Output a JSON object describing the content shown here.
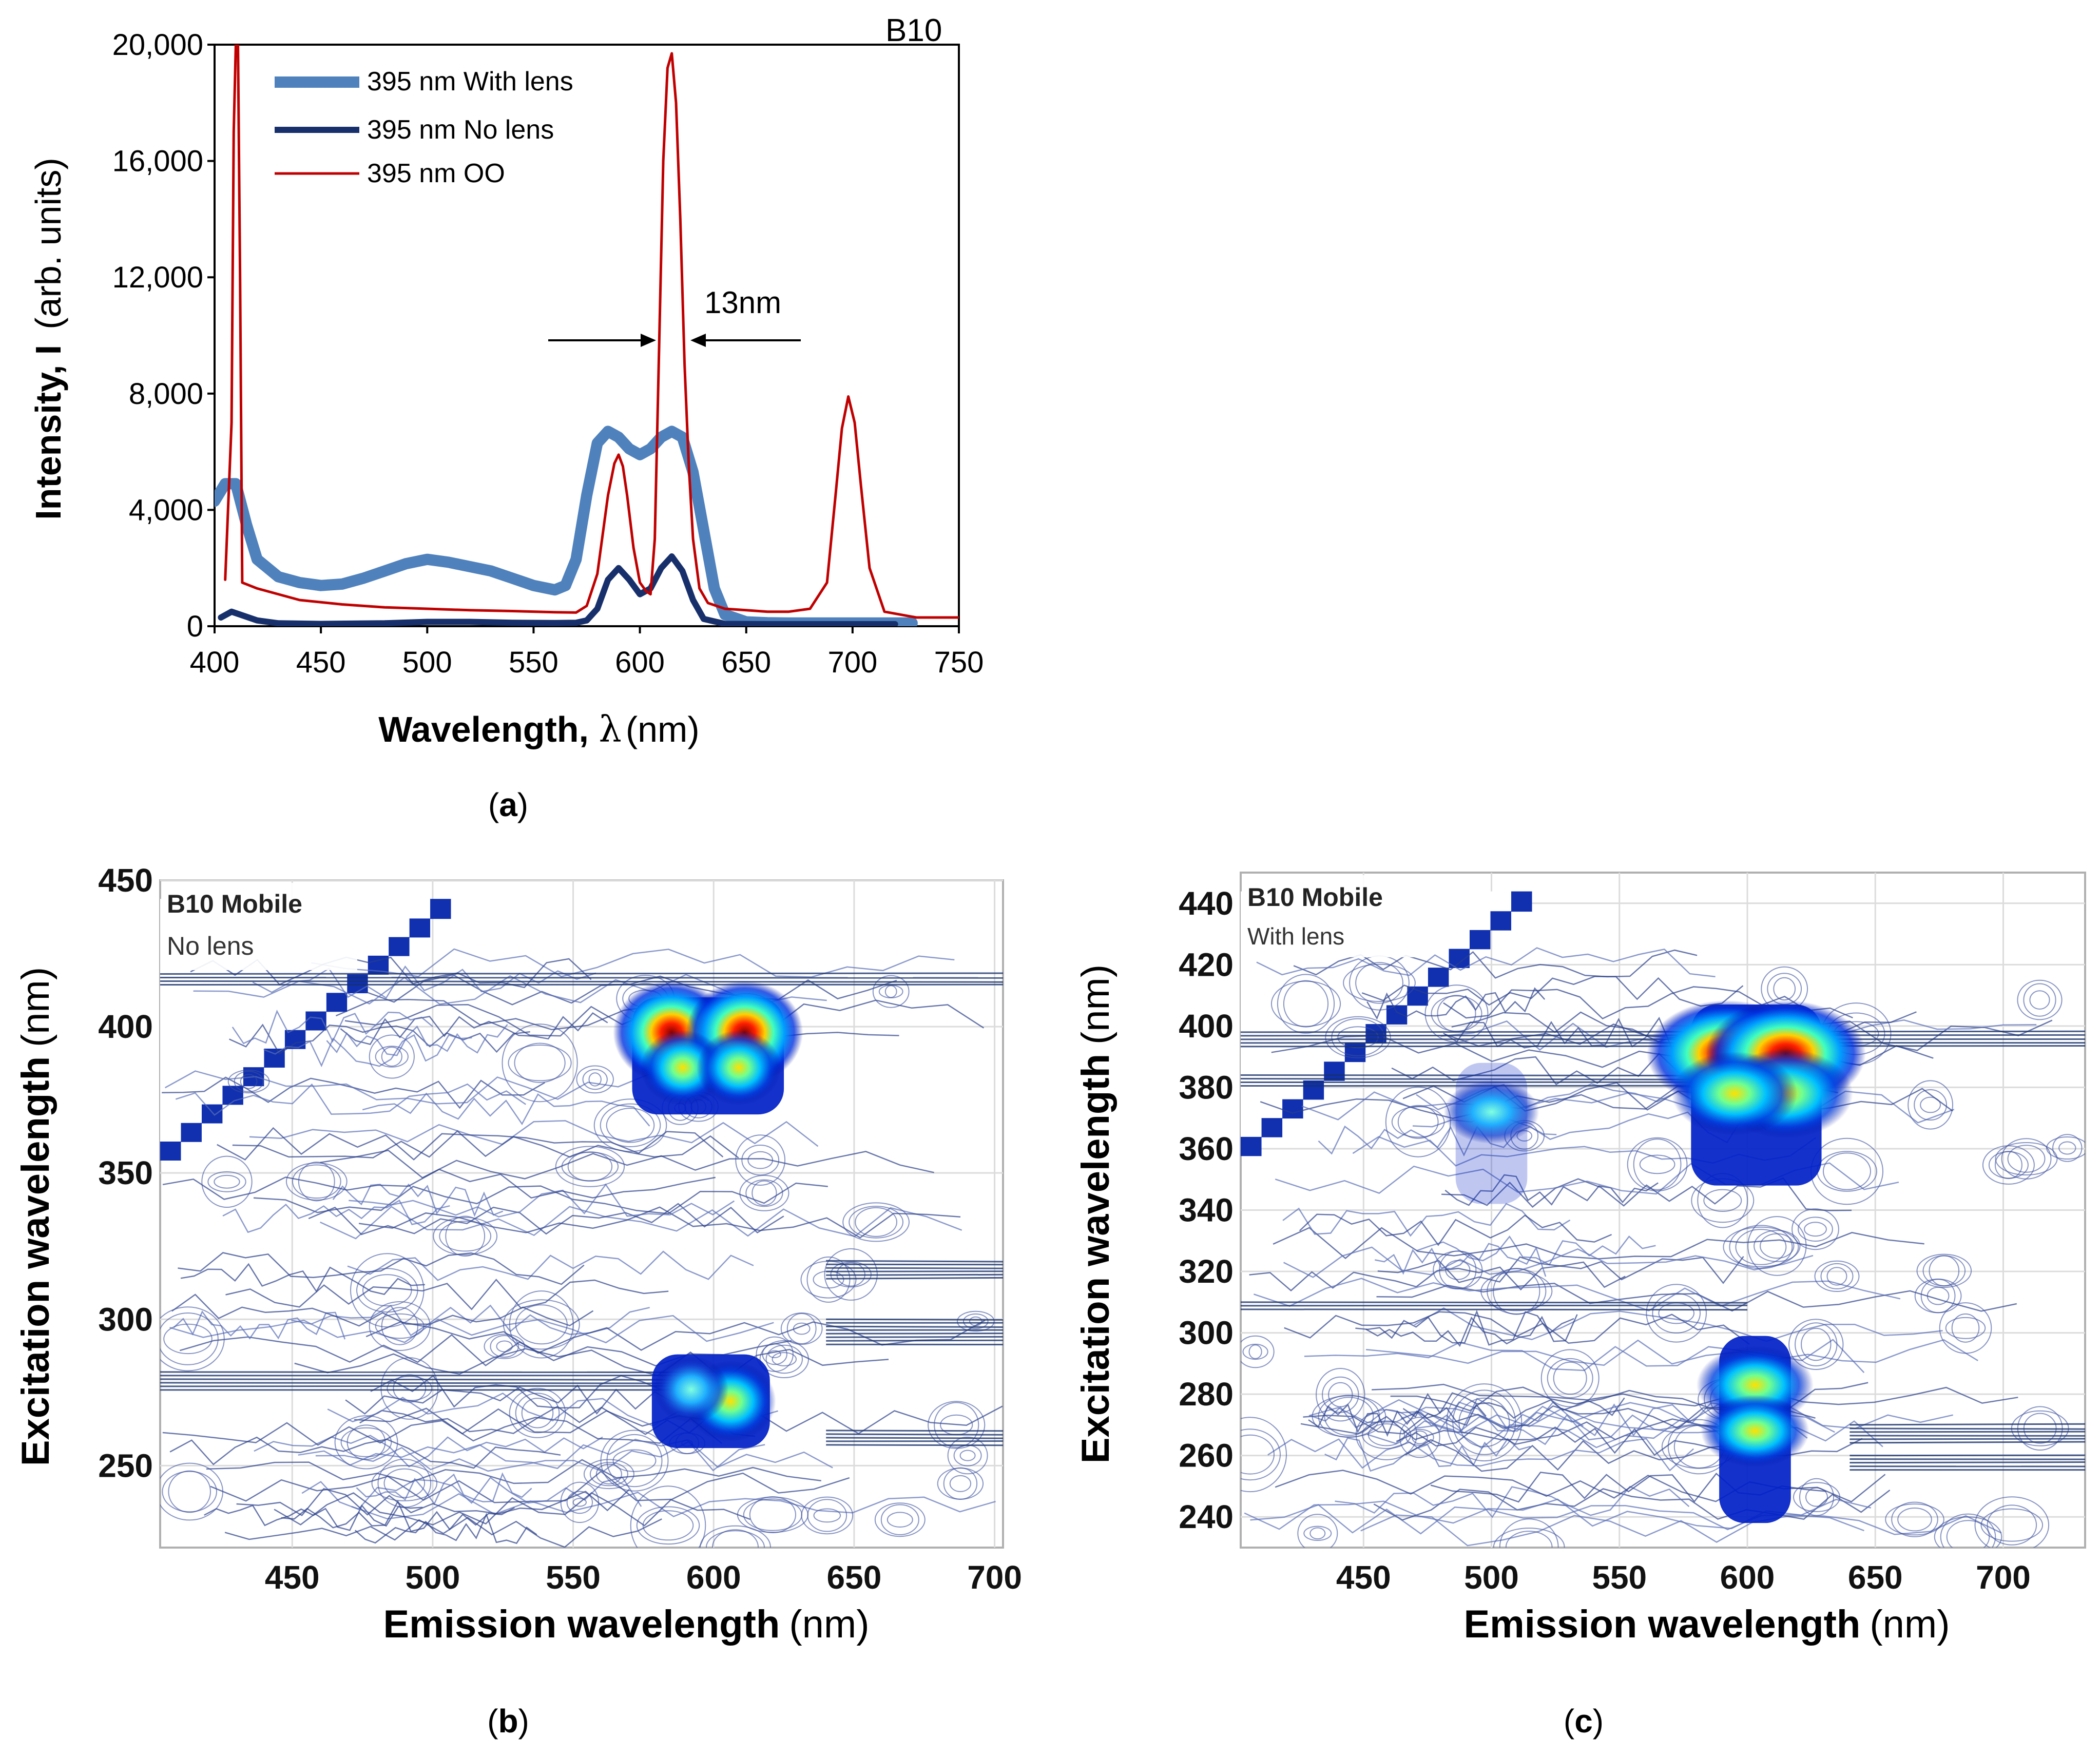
{
  "chart_data": [
    {
      "type": "line",
      "panel_label": "(a)",
      "panel_letter": "a",
      "title": "B10",
      "xlabel": {
        "bold": "Wavelength,",
        "symbol": "λ",
        "unit": "(nm)"
      },
      "ylabel": {
        "bold": "Intensity, I",
        "unit": "(arb. units)"
      },
      "xlim": [
        400,
        750
      ],
      "ylim": [
        0,
        20000
      ],
      "xticks": [
        400,
        450,
        500,
        550,
        600,
        650,
        700,
        750
      ],
      "yticks": [
        0,
        4000,
        8000,
        12000,
        16000,
        20000
      ],
      "ytick_labels": [
        "0",
        "4,000",
        "8,000",
        "12,000",
        "16,000",
        "20,000"
      ],
      "series": [
        {
          "name": "395 nm With lens",
          "color": "#4f81bd",
          "x": [
            400,
            405,
            410,
            415,
            420,
            430,
            440,
            450,
            460,
            470,
            480,
            490,
            500,
            510,
            520,
            530,
            540,
            550,
            560,
            565,
            570,
            575,
            580,
            585,
            590,
            595,
            600,
            605,
            610,
            615,
            620,
            625,
            630,
            635,
            640,
            650,
            660,
            670,
            680,
            690,
            700,
            710,
            720,
            728
          ],
          "y": [
            4300,
            4900,
            4900,
            3500,
            2300,
            1700,
            1500,
            1400,
            1450,
            1650,
            1900,
            2150,
            2300,
            2200,
            2050,
            1900,
            1650,
            1400,
            1250,
            1400,
            2300,
            4500,
            6300,
            6700,
            6500,
            6100,
            5900,
            6100,
            6500,
            6700,
            6500,
            5300,
            3300,
            1300,
            400,
            150,
            120,
            110,
            110,
            110,
            110,
            110,
            110,
            110
          ]
        },
        {
          "name": "395 nm No lens",
          "color": "#17306b",
          "x": [
            403,
            408,
            412,
            420,
            430,
            450,
            480,
            500,
            520,
            540,
            560,
            570,
            575,
            580,
            585,
            590,
            595,
            600,
            605,
            610,
            615,
            620,
            625,
            630,
            640,
            660,
            690,
            720
          ],
          "y": [
            300,
            500,
            400,
            200,
            100,
            80,
            100,
            150,
            150,
            120,
            110,
            120,
            200,
            600,
            1600,
            2000,
            1600,
            1100,
            1300,
            2000,
            2400,
            1900,
            900,
            250,
            80,
            70,
            70,
            70
          ]
        },
        {
          "name": "395 nm OO",
          "color": "#c00000",
          "x": [
            405,
            408,
            409,
            410,
            411,
            412,
            413,
            420,
            440,
            460,
            480,
            500,
            520,
            540,
            560,
            570,
            575,
            580,
            585,
            588,
            590,
            592,
            594,
            597,
            600,
            603,
            605,
            607,
            609,
            611,
            613,
            615,
            617,
            619,
            621,
            623,
            625,
            628,
            632,
            640,
            650,
            660,
            670,
            680,
            688,
            692,
            695,
            698,
            701,
            704,
            708,
            715,
            730,
            750
          ],
          "y": [
            1600,
            7000,
            17000,
            20000,
            20000,
            12000,
            1500,
            1300,
            900,
            750,
            650,
            600,
            550,
            520,
            480,
            470,
            700,
            1800,
            4500,
            5600,
            5900,
            5500,
            4500,
            2700,
            1500,
            1200,
            1100,
            3000,
            9500,
            16000,
            19200,
            19700,
            18000,
            14000,
            9000,
            5500,
            3000,
            1300,
            800,
            600,
            550,
            500,
            500,
            600,
            1500,
            4500,
            6800,
            7900,
            7000,
            4800,
            2000,
            500,
            300,
            300
          ]
        }
      ],
      "annotations": [
        {
          "text": "13nm"
        }
      ]
    },
    {
      "type": "heatmap",
      "panel_label": "(b)",
      "panel_letter": "b",
      "inset_title": "B10 Mobile",
      "inset_subtitle": "No lens",
      "xlabel": {
        "bold": "Emission wavelength",
        "unit": "(nm)"
      },
      "ylabel": {
        "bold": "Excitation wavelength",
        "unit": "(nm)"
      },
      "xlim": [
        403,
        703
      ],
      "ylim": [
        222,
        450
      ],
      "xticks": [
        450,
        500,
        550,
        600,
        650,
        700
      ],
      "yticks": [
        250,
        300,
        350,
        400,
        450
      ],
      "hot_spots": [
        {
          "x": 585,
          "y": 398,
          "level": 0.95
        },
        {
          "x": 611,
          "y": 398,
          "level": 0.95
        },
        {
          "x": 589,
          "y": 386,
          "level": 0.45
        },
        {
          "x": 609,
          "y": 386,
          "level": 0.45
        },
        {
          "x": 606,
          "y": 272,
          "level": 0.55
        },
        {
          "x": 592,
          "y": 276,
          "level": 0.3
        }
      ]
    },
    {
      "type": "heatmap",
      "panel_label": "(c)",
      "panel_letter": "c",
      "inset_title": "B10 Mobile",
      "inset_subtitle": "With lens",
      "xlabel": {
        "bold": "Emission wavelength",
        "unit": "(nm)"
      },
      "ylabel": {
        "bold": "Excitation wavelength",
        "unit": "(nm)"
      },
      "xlim": [
        402,
        732
      ],
      "ylim": [
        230,
        450
      ],
      "xticks": [
        450,
        500,
        550,
        600,
        650,
        700
      ],
      "yticks": [
        240,
        260,
        280,
        300,
        320,
        340,
        360,
        380,
        400,
        420,
        440
      ],
      "hot_spots": [
        {
          "x": 592,
          "y": 391,
          "level": 1.0
        },
        {
          "x": 615,
          "y": 391,
          "level": 1.0
        },
        {
          "x": 615,
          "y": 378,
          "level": 0.7
        },
        {
          "x": 595,
          "y": 378,
          "level": 0.6
        },
        {
          "x": 603,
          "y": 283,
          "level": 0.5
        },
        {
          "x": 603,
          "y": 268,
          "level": 0.4
        },
        {
          "x": 500,
          "y": 372,
          "level": 0.25
        }
      ]
    }
  ]
}
